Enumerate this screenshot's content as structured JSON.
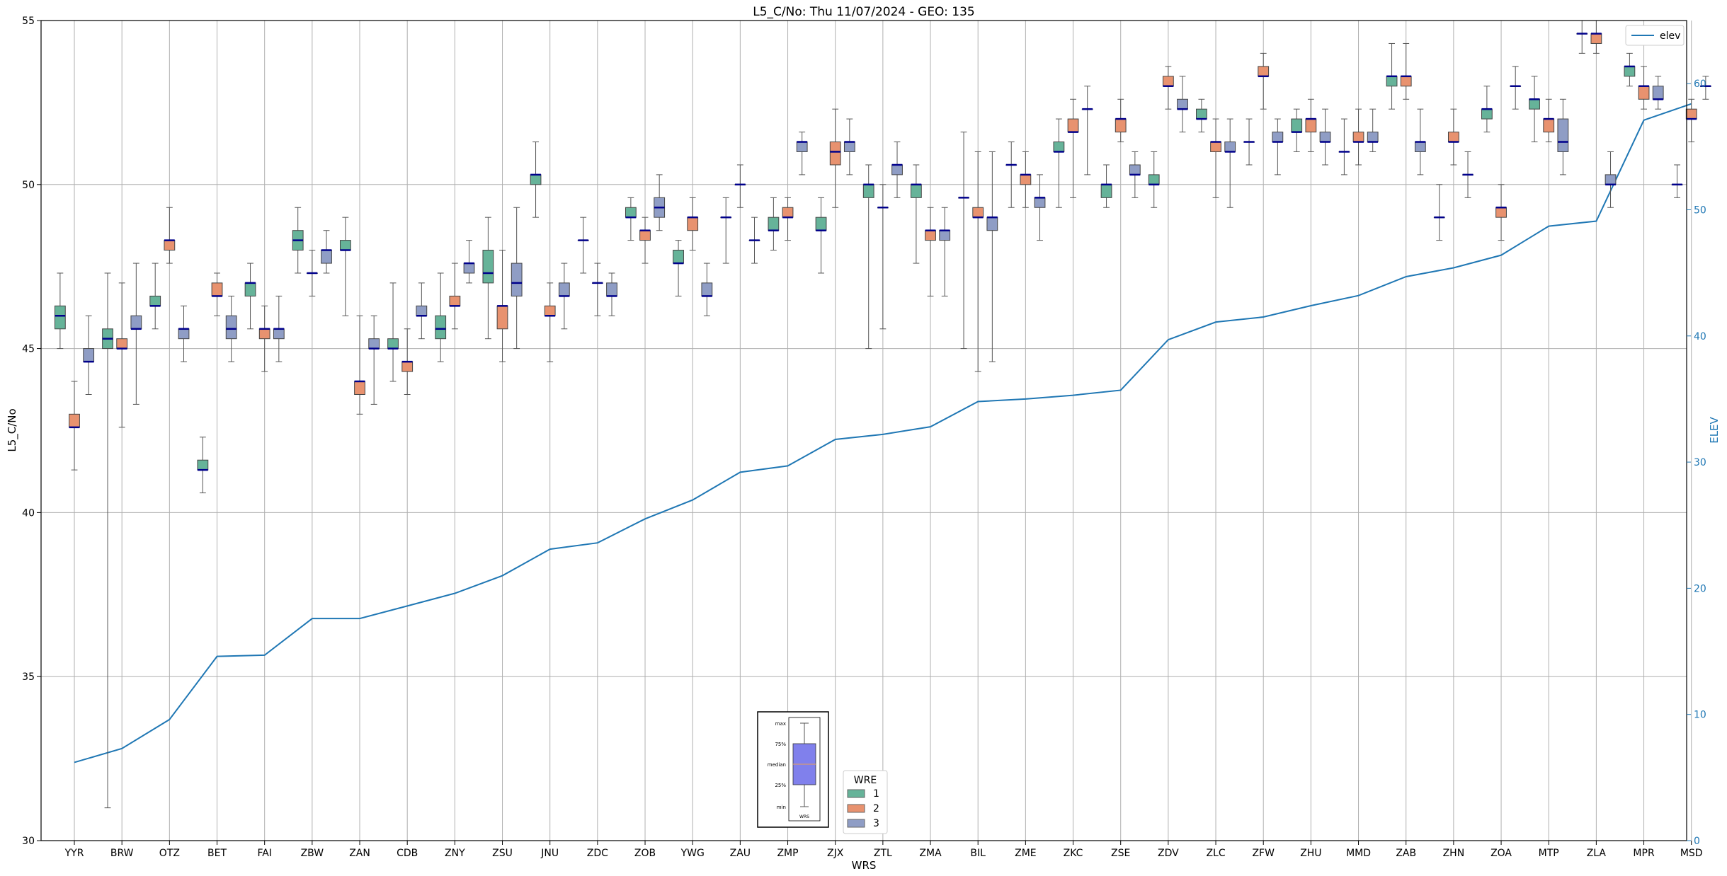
{
  "chart_data": {
    "type": "box",
    "title": "L5_C/No: Thu 11/07/2024 - GEO: 135",
    "xlabel": "WRS",
    "ylabel": "L5_C/No",
    "y2label": "ELEV",
    "ylim": [
      30,
      55
    ],
    "y2lim": [
      0,
      65
    ],
    "yticks": [
      30,
      35,
      40,
      45,
      50,
      55
    ],
    "y2ticks": [
      0,
      10,
      20,
      30,
      40,
      50,
      60
    ],
    "grid": true,
    "categories": [
      "YYR",
      "BRW",
      "OTZ",
      "BET",
      "FAI",
      "ZBW",
      "ZAN",
      "CDB",
      "ZNY",
      "ZSU",
      "JNU",
      "ZDC",
      "ZOB",
      "YWG",
      "ZAU",
      "ZMP",
      "ZJX",
      "ZTL",
      "ZMA",
      "BIL",
      "ZME",
      "ZKC",
      "ZSE",
      "ZDV",
      "ZLC",
      "ZFW",
      "ZHU",
      "MMD",
      "ZAB",
      "ZHN",
      "ZOA",
      "MTP",
      "ZLA",
      "MPR",
      "MSD"
    ],
    "elev": [
      6.2,
      7.3,
      9.6,
      14.6,
      14.7,
      17.6,
      17.6,
      18.6,
      19.6,
      21.0,
      23.1,
      23.6,
      25.5,
      27.0,
      29.2,
      29.7,
      31.8,
      32.2,
      32.8,
      34.8,
      35.0,
      35.3,
      35.7,
      39.7,
      41.1,
      41.5,
      42.4,
      43.2,
      44.7,
      45.4,
      46.4,
      48.7,
      49.1,
      57.1,
      58.4
    ],
    "boxes": {
      "1": [
        {
          "min": 45.0,
          "q1": 45.6,
          "med": 46.0,
          "q3": 46.3,
          "max": 47.3
        },
        {
          "min": 31.0,
          "q1": 45.0,
          "med": 45.3,
          "q3": 45.6,
          "max": 47.3
        },
        {
          "min": 45.6,
          "q1": 46.3,
          "med": 46.3,
          "q3": 46.6,
          "max": 47.6
        },
        {
          "min": 40.6,
          "q1": 41.3,
          "med": 41.3,
          "q3": 41.6,
          "max": 42.3
        },
        {
          "min": 45.6,
          "q1": 46.6,
          "med": 47.0,
          "q3": 47.0,
          "max": 47.6
        },
        {
          "min": 47.3,
          "q1": 48.0,
          "med": 48.3,
          "q3": 48.6,
          "max": 49.3
        },
        {
          "min": 46.0,
          "q1": 48.0,
          "med": 48.0,
          "q3": 48.3,
          "max": 49.0
        },
        {
          "min": 44.0,
          "q1": 45.0,
          "med": 45.0,
          "q3": 45.3,
          "max": 47.0
        },
        {
          "min": 44.6,
          "q1": 45.3,
          "med": 45.6,
          "q3": 46.0,
          "max": 47.3
        },
        {
          "min": 45.3,
          "q1": 47.0,
          "med": 47.3,
          "q3": 48.0,
          "max": 49.0
        },
        {
          "min": 49.0,
          "q1": 50.0,
          "med": 50.3,
          "q3": 50.3,
          "max": 51.3
        },
        {
          "min": 47.3,
          "q1": 48.3,
          "med": 48.3,
          "q3": 48.3,
          "max": 49.0
        },
        {
          "min": 48.3,
          "q1": 49.0,
          "med": 49.0,
          "q3": 49.3,
          "max": 49.6
        },
        {
          "min": 46.6,
          "q1": 47.6,
          "med": 47.6,
          "q3": 48.0,
          "max": 48.3
        },
        {
          "min": 47.6,
          "q1": 49.0,
          "med": 49.0,
          "q3": 49.0,
          "max": 49.6
        },
        {
          "min": 48.0,
          "q1": 48.6,
          "med": 48.6,
          "q3": 49.0,
          "max": 49.6
        },
        {
          "min": 47.3,
          "q1": 48.6,
          "med": 48.6,
          "q3": 49.0,
          "max": 49.6
        },
        {
          "min": 45.0,
          "q1": 49.6,
          "med": 50.0,
          "q3": 50.0,
          "max": 50.6
        },
        {
          "min": 47.6,
          "q1": 49.6,
          "med": 50.0,
          "q3": 50.0,
          "max": 50.6
        },
        {
          "min": 45.0,
          "q1": 49.6,
          "med": 49.6,
          "q3": 49.6,
          "max": 51.6
        },
        {
          "min": 49.3,
          "q1": 50.6,
          "med": 50.6,
          "q3": 50.6,
          "max": 51.3
        },
        {
          "min": 49.3,
          "q1": 51.0,
          "med": 51.0,
          "q3": 51.3,
          "max": 52.0
        },
        {
          "min": 49.3,
          "q1": 49.6,
          "med": 50.0,
          "q3": 50.0,
          "max": 50.6
        },
        {
          "min": 49.3,
          "q1": 50.0,
          "med": 50.0,
          "q3": 50.3,
          "max": 51.0
        },
        {
          "min": 51.6,
          "q1": 52.0,
          "med": 52.0,
          "q3": 52.3,
          "max": 52.6
        },
        {
          "min": 50.6,
          "q1": 51.3,
          "med": 51.3,
          "q3": 51.3,
          "max": 52.0
        },
        {
          "min": 51.0,
          "q1": 51.6,
          "med": 51.6,
          "q3": 52.0,
          "max": 52.3
        },
        {
          "min": 50.3,
          "q1": 51.0,
          "med": 51.0,
          "q3": 51.0,
          "max": 52.0
        },
        {
          "min": 52.3,
          "q1": 53.0,
          "med": 53.3,
          "q3": 53.3,
          "max": 54.3
        },
        {
          "min": 48.3,
          "q1": 49.0,
          "med": 49.0,
          "q3": 49.0,
          "max": 50.0
        },
        {
          "min": 51.6,
          "q1": 52.0,
          "med": 52.3,
          "q3": 52.3,
          "max": 53.0
        },
        {
          "min": 51.3,
          "q1": 52.3,
          "med": 52.6,
          "q3": 52.6,
          "max": 53.3
        },
        {
          "min": 54.0,
          "q1": 54.6,
          "med": 54.6,
          "q3": 54.6,
          "max": 55.0
        },
        {
          "min": 53.0,
          "q1": 53.3,
          "med": 53.6,
          "q3": 53.6,
          "max": 54.0
        },
        {
          "min": 49.6,
          "q1": 50.0,
          "med": 50.0,
          "q3": 50.0,
          "max": 50.6
        }
      ],
      "2": [
        {
          "min": 41.3,
          "q1": 42.6,
          "med": 42.6,
          "q3": 43.0,
          "max": 44.0
        },
        {
          "min": 42.6,
          "q1": 45.0,
          "med": 45.0,
          "q3": 45.3,
          "max": 47.0
        },
        {
          "min": 47.6,
          "q1": 48.0,
          "med": 48.3,
          "q3": 48.3,
          "max": 49.3
        },
        {
          "min": 46.0,
          "q1": 46.6,
          "med": 46.6,
          "q3": 47.0,
          "max": 47.3
        },
        {
          "min": 44.3,
          "q1": 45.3,
          "med": 45.6,
          "q3": 45.6,
          "max": 46.3
        },
        {
          "min": 46.6,
          "q1": 47.3,
          "med": 47.3,
          "q3": 47.3,
          "max": 48.0
        },
        {
          "min": 43.0,
          "q1": 43.6,
          "med": 44.0,
          "q3": 44.0,
          "max": 46.0
        },
        {
          "min": 43.6,
          "q1": 44.3,
          "med": 44.6,
          "q3": 44.6,
          "max": 45.6
        },
        {
          "min": 45.6,
          "q1": 46.3,
          "med": 46.3,
          "q3": 46.6,
          "max": 47.6
        },
        {
          "min": 44.6,
          "q1": 45.6,
          "med": 46.3,
          "q3": 46.3,
          "max": 48.0
        },
        {
          "min": 44.6,
          "q1": 46.0,
          "med": 46.0,
          "q3": 46.3,
          "max": 47.0
        },
        {
          "min": 46.0,
          "q1": 47.0,
          "med": 47.0,
          "q3": 47.0,
          "max": 47.6
        },
        {
          "min": 47.6,
          "q1": 48.3,
          "med": 48.6,
          "q3": 48.6,
          "max": 49.0
        },
        {
          "min": 48.0,
          "q1": 48.6,
          "med": 49.0,
          "q3": 49.0,
          "max": 49.6
        },
        {
          "min": 49.3,
          "q1": 50.0,
          "med": 50.0,
          "q3": 50.0,
          "max": 50.6
        },
        {
          "min": 48.3,
          "q1": 49.0,
          "med": 49.0,
          "q3": 49.3,
          "max": 49.6
        },
        {
          "min": 49.3,
          "q1": 50.6,
          "med": 51.0,
          "q3": 51.3,
          "max": 52.3
        },
        {
          "min": 45.6,
          "q1": 49.3,
          "med": 49.3,
          "q3": 49.3,
          "max": 50.0
        },
        {
          "min": 46.6,
          "q1": 48.3,
          "med": 48.6,
          "q3": 48.6,
          "max": 49.3
        },
        {
          "min": 44.3,
          "q1": 49.0,
          "med": 49.0,
          "q3": 49.3,
          "max": 51.0
        },
        {
          "min": 49.3,
          "q1": 50.0,
          "med": 50.3,
          "q3": 50.3,
          "max": 51.0
        },
        {
          "min": 49.6,
          "q1": 51.6,
          "med": 51.6,
          "q3": 52.0,
          "max": 52.6
        },
        {
          "min": 51.3,
          "q1": 51.6,
          "med": 52.0,
          "q3": 52.0,
          "max": 52.6
        },
        {
          "min": 52.3,
          "q1": 53.0,
          "med": 53.0,
          "q3": 53.3,
          "max": 53.6
        },
        {
          "min": 49.6,
          "q1": 51.0,
          "med": 51.3,
          "q3": 51.3,
          "max": 52.0
        },
        {
          "min": 52.3,
          "q1": 53.3,
          "med": 53.3,
          "q3": 53.6,
          "max": 54.0
        },
        {
          "min": 51.0,
          "q1": 51.6,
          "med": 52.0,
          "q3": 52.0,
          "max": 52.6
        },
        {
          "min": 50.6,
          "q1": 51.3,
          "med": 51.3,
          "q3": 51.6,
          "max": 52.3
        },
        {
          "min": 52.6,
          "q1": 53.0,
          "med": 53.3,
          "q3": 53.3,
          "max": 54.3
        },
        {
          "min": 50.6,
          "q1": 51.3,
          "med": 51.3,
          "q3": 51.6,
          "max": 52.3
        },
        {
          "min": 48.3,
          "q1": 49.0,
          "med": 49.3,
          "q3": 49.3,
          "max": 50.0
        },
        {
          "min": 51.3,
          "q1": 51.6,
          "med": 52.0,
          "q3": 52.0,
          "max": 52.6
        },
        {
          "min": 54.0,
          "q1": 54.3,
          "med": 54.6,
          "q3": 54.6,
          "max": 55.0
        },
        {
          "min": 52.3,
          "q1": 52.6,
          "med": 53.0,
          "q3": 53.0,
          "max": 53.6
        },
        {
          "min": 51.3,
          "q1": 52.0,
          "med": 52.0,
          "q3": 52.3,
          "max": 52.6
        }
      ],
      "3": [
        {
          "min": 43.6,
          "q1": 44.6,
          "med": 44.6,
          "q3": 45.0,
          "max": 46.0
        },
        {
          "min": 43.3,
          "q1": 45.6,
          "med": 45.6,
          "q3": 46.0,
          "max": 47.6
        },
        {
          "min": 44.6,
          "q1": 45.3,
          "med": 45.6,
          "q3": 45.6,
          "max": 46.3
        },
        {
          "min": 44.6,
          "q1": 45.3,
          "med": 45.6,
          "q3": 46.0,
          "max": 46.6
        },
        {
          "min": 44.6,
          "q1": 45.3,
          "med": 45.6,
          "q3": 45.6,
          "max": 46.6
        },
        {
          "min": 47.3,
          "q1": 47.6,
          "med": 48.0,
          "q3": 48.0,
          "max": 48.6
        },
        {
          "min": 43.3,
          "q1": 45.0,
          "med": 45.0,
          "q3": 45.3,
          "max": 46.0
        },
        {
          "min": 45.3,
          "q1": 46.0,
          "med": 46.0,
          "q3": 46.3,
          "max": 47.0
        },
        {
          "min": 47.0,
          "q1": 47.3,
          "med": 47.6,
          "q3": 47.6,
          "max": 48.3
        },
        {
          "min": 45.0,
          "q1": 46.6,
          "med": 47.0,
          "q3": 47.6,
          "max": 49.3
        },
        {
          "min": 45.6,
          "q1": 46.6,
          "med": 46.6,
          "q3": 47.0,
          "max": 47.6
        },
        {
          "min": 46.0,
          "q1": 46.6,
          "med": 46.6,
          "q3": 47.0,
          "max": 47.3
        },
        {
          "min": 48.6,
          "q1": 49.0,
          "med": 49.3,
          "q3": 49.6,
          "max": 50.3
        },
        {
          "min": 46.0,
          "q1": 46.6,
          "med": 46.6,
          "q3": 47.0,
          "max": 47.6
        },
        {
          "min": 47.6,
          "q1": 48.3,
          "med": 48.3,
          "q3": 48.3,
          "max": 49.0
        },
        {
          "min": 50.3,
          "q1": 51.0,
          "med": 51.3,
          "q3": 51.3,
          "max": 51.6
        },
        {
          "min": 50.3,
          "q1": 51.0,
          "med": 51.3,
          "q3": 51.3,
          "max": 52.0
        },
        {
          "min": 49.6,
          "q1": 50.3,
          "med": 50.6,
          "q3": 50.6,
          "max": 51.3
        },
        {
          "min": 46.6,
          "q1": 48.3,
          "med": 48.6,
          "q3": 48.6,
          "max": 49.3
        },
        {
          "min": 44.6,
          "q1": 48.6,
          "med": 49.0,
          "q3": 49.0,
          "max": 51.0
        },
        {
          "min": 48.3,
          "q1": 49.3,
          "med": 49.6,
          "q3": 49.6,
          "max": 50.3
        },
        {
          "min": 50.3,
          "q1": 52.3,
          "med": 52.3,
          "q3": 52.3,
          "max": 53.0
        },
        {
          "min": 49.6,
          "q1": 50.3,
          "med": 50.3,
          "q3": 50.6,
          "max": 51.0
        },
        {
          "min": 51.6,
          "q1": 52.3,
          "med": 52.3,
          "q3": 52.6,
          "max": 53.3
        },
        {
          "min": 49.3,
          "q1": 51.0,
          "med": 51.0,
          "q3": 51.3,
          "max": 52.0
        },
        {
          "min": 50.3,
          "q1": 51.3,
          "med": 51.3,
          "q3": 51.6,
          "max": 52.0
        },
        {
          "min": 50.6,
          "q1": 51.3,
          "med": 51.3,
          "q3": 51.6,
          "max": 52.3
        },
        {
          "min": 51.0,
          "q1": 51.3,
          "med": 51.3,
          "q3": 51.6,
          "max": 52.3
        },
        {
          "min": 50.3,
          "q1": 51.0,
          "med": 51.3,
          "q3": 51.3,
          "max": 52.3
        },
        {
          "min": 49.6,
          "q1": 50.3,
          "med": 50.3,
          "q3": 50.3,
          "max": 51.0
        },
        {
          "min": 52.3,
          "q1": 53.0,
          "med": 53.0,
          "q3": 53.0,
          "max": 53.6
        },
        {
          "min": 50.3,
          "q1": 51.0,
          "med": 51.3,
          "q3": 52.0,
          "max": 52.6
        },
        {
          "min": 49.3,
          "q1": 50.0,
          "med": 50.0,
          "q3": 50.3,
          "max": 51.0
        },
        {
          "min": 52.3,
          "q1": 52.6,
          "med": 52.6,
          "q3": 53.0,
          "max": 53.3
        },
        {
          "min": 52.6,
          "q1": 53.0,
          "med": 53.0,
          "q3": 53.0,
          "max": 53.3
        }
      ]
    },
    "series": [
      {
        "name": "1",
        "color": "#66b399"
      },
      {
        "name": "2",
        "color": "#e8926f"
      },
      {
        "name": "3",
        "color": "#8f9dc5"
      }
    ],
    "elev_series": {
      "name": "elev",
      "color": "#1f77b4"
    },
    "legend_elev": {
      "label": "elev",
      "placement": "top-right"
    },
    "legend_wre": {
      "title": "WRE",
      "labels": [
        "1",
        "2",
        "3"
      ],
      "placement": "bottom-center"
    },
    "key_box": {
      "labels": [
        "max",
        "75%",
        "median",
        "25%",
        "min"
      ],
      "xlabel": "WRS"
    }
  }
}
